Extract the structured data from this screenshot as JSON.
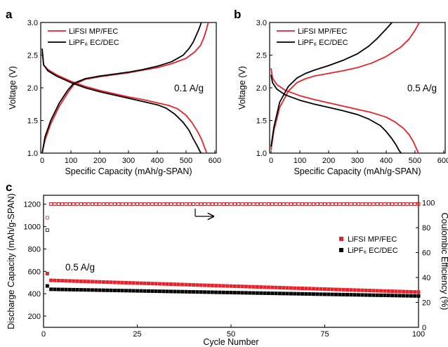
{
  "colors": {
    "lifsi": "#e8212b",
    "lipf6": "#000000"
  },
  "chart_data": [
    {
      "panel": "a",
      "type": "line",
      "xlabel": "Specific Capacity (mAh/g-SPAN)",
      "ylabel": "Voltage (V)",
      "xlim": [
        -5,
        605
      ],
      "ylim": [
        1.0,
        3.0
      ],
      "xticks": [
        0,
        100,
        200,
        300,
        400,
        500,
        600
      ],
      "yticks": [
        1.0,
        1.5,
        2.0,
        2.5,
        3.0
      ],
      "annotation": "0.1 A/g",
      "legend": [
        "LiFSI MP/FEC",
        "LiPF₆ EC/DEC"
      ],
      "series": [
        {
          "name": "LiFSI MP/FEC",
          "color": "#e8212b",
          "segment": "discharge",
          "x": [
            0,
            5,
            20,
            50,
            100,
            150,
            200,
            250,
            300,
            350,
            400,
            440,
            470,
            500,
            520,
            540,
            555,
            565,
            572
          ],
          "y": [
            2.55,
            2.35,
            2.28,
            2.2,
            2.1,
            2.02,
            1.96,
            1.91,
            1.86,
            1.82,
            1.77,
            1.73,
            1.68,
            1.58,
            1.47,
            1.33,
            1.2,
            1.08,
            1.0
          ]
        },
        {
          "name": "LiFSI MP/FEC",
          "color": "#e8212b",
          "segment": "charge",
          "x": [
            0,
            10,
            30,
            60,
            90,
            110,
            150,
            200,
            250,
            300,
            350,
            400,
            450,
            500,
            530,
            550,
            560,
            570,
            577
          ],
          "y": [
            1.0,
            1.2,
            1.45,
            1.72,
            1.93,
            2.05,
            2.13,
            2.17,
            2.2,
            2.23,
            2.27,
            2.31,
            2.37,
            2.45,
            2.55,
            2.65,
            2.75,
            2.88,
            3.0
          ]
        },
        {
          "name": "LiPF₆ EC/DEC",
          "color": "#000000",
          "segment": "discharge",
          "x": [
            0,
            5,
            20,
            50,
            100,
            150,
            200,
            250,
            300,
            350,
            400,
            430,
            460,
            490,
            510,
            525,
            540,
            548,
            552
          ],
          "y": [
            2.6,
            2.35,
            2.26,
            2.18,
            2.08,
            2.0,
            1.94,
            1.89,
            1.84,
            1.79,
            1.74,
            1.69,
            1.6,
            1.47,
            1.35,
            1.22,
            1.1,
            1.03,
            1.0
          ]
        },
        {
          "name": "LiPF₆ EC/DEC",
          "color": "#000000",
          "segment": "charge",
          "x": [
            0,
            10,
            30,
            60,
            90,
            110,
            150,
            200,
            250,
            300,
            350,
            400,
            450,
            490,
            510,
            525,
            535,
            545,
            553
          ],
          "y": [
            1.0,
            1.25,
            1.5,
            1.77,
            1.97,
            2.07,
            2.14,
            2.18,
            2.21,
            2.24,
            2.28,
            2.33,
            2.4,
            2.5,
            2.6,
            2.7,
            2.8,
            2.9,
            3.0
          ]
        }
      ]
    },
    {
      "panel": "b",
      "type": "line",
      "xlabel": "Specific Capacity (mAh/g-SPAN)",
      "ylabel": "Voltage (V)",
      "xlim": [
        -5,
        605
      ],
      "ylim": [
        1.0,
        3.0
      ],
      "xticks": [
        0,
        100,
        200,
        300,
        400,
        500,
        600
      ],
      "yticks": [
        1.0,
        1.5,
        2.0,
        2.5,
        3.0
      ],
      "annotation": "0.5 A/g",
      "legend": [
        "LiFSI MP/FEC",
        "LiPF₆ EC/DEC"
      ],
      "series": [
        {
          "name": "LiFSI MP/FEC",
          "color": "#e8212b",
          "segment": "discharge",
          "x": [
            0,
            5,
            20,
            50,
            100,
            150,
            200,
            250,
            300,
            350,
            400,
            430,
            460,
            480,
            495,
            505,
            512
          ],
          "y": [
            2.3,
            2.15,
            2.05,
            1.96,
            1.88,
            1.82,
            1.77,
            1.72,
            1.67,
            1.62,
            1.55,
            1.48,
            1.38,
            1.28,
            1.17,
            1.07,
            1.0
          ]
        },
        {
          "name": "LiFSI MP/FEC",
          "color": "#e8212b",
          "segment": "charge",
          "x": [
            0,
            10,
            30,
            60,
            90,
            120,
            150,
            200,
            250,
            300,
            350,
            400,
            450,
            480,
            500,
            515
          ],
          "y": [
            1.05,
            1.35,
            1.7,
            1.95,
            2.08,
            2.14,
            2.18,
            2.22,
            2.26,
            2.31,
            2.38,
            2.48,
            2.62,
            2.75,
            2.88,
            3.0
          ]
        },
        {
          "name": "LiPF₆ EC/DEC",
          "color": "#000000",
          "segment": "discharge",
          "x": [
            0,
            5,
            20,
            50,
            100,
            150,
            200,
            250,
            300,
            340,
            380,
            400,
            420,
            435,
            445,
            452
          ],
          "y": [
            2.2,
            2.08,
            1.98,
            1.89,
            1.81,
            1.75,
            1.7,
            1.65,
            1.59,
            1.52,
            1.42,
            1.33,
            1.22,
            1.12,
            1.04,
            1.0
          ]
        },
        {
          "name": "LiPF₆ EC/DEC",
          "color": "#000000",
          "segment": "charge",
          "x": [
            0,
            10,
            30,
            60,
            90,
            120,
            150,
            200,
            250,
            300,
            340,
            370,
            400,
            420
          ],
          "y": [
            1.1,
            1.4,
            1.78,
            2.02,
            2.15,
            2.22,
            2.27,
            2.34,
            2.42,
            2.52,
            2.64,
            2.76,
            2.9,
            3.0
          ]
        }
      ]
    },
    {
      "panel": "c",
      "type": "scatter",
      "xlabel": "Cycle Number",
      "ylabel": "Discharge Capacity (mAh/g-SPAN)",
      "y2label": "Coulombic Efficiency (%)",
      "xlim": [
        0,
        100
      ],
      "ylim": [
        100,
        1280
      ],
      "y2lim": [
        0,
        106
      ],
      "xticks": [
        0,
        25,
        50,
        75,
        100
      ],
      "yticks": [
        200,
        400,
        600,
        800,
        1000,
        1200
      ],
      "y2ticks": [
        0,
        20,
        40,
        60,
        80,
        100
      ],
      "annotation": "0.5 A/g",
      "legend": [
        "LiFSI MP/FEC",
        "LiPF₆ EC/DEC"
      ],
      "legend_position": "right",
      "lifsi_capacity": {
        "first": 580,
        "start": 520,
        "end": 415
      },
      "lipf6_capacity": {
        "first": 470,
        "start": 440,
        "end": 380
      },
      "lifsi_ce": {
        "first": 88,
        "rest": 99
      },
      "lipf6_ce": {
        "first": 78,
        "rest": 99
      },
      "arrow_direction": "right"
    }
  ]
}
